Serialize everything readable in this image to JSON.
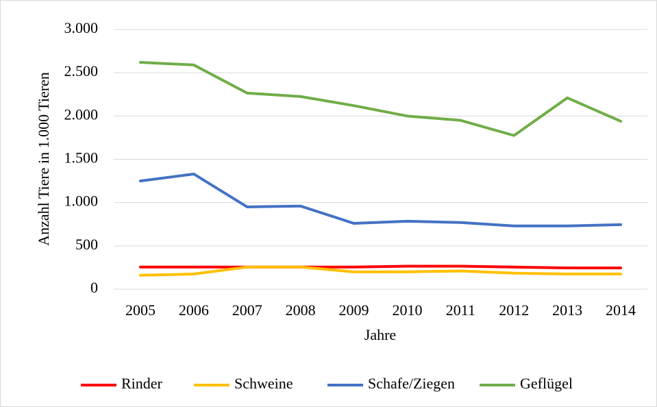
{
  "chart_data": {
    "type": "line",
    "y_label": "Anzahl Tiere in 1.000 Tieren",
    "x_label": "Jahre",
    "categories": [
      "2005",
      "2006",
      "2007",
      "2008",
      "2009",
      "2010",
      "2011",
      "2012",
      "2013",
      "2014"
    ],
    "series": [
      {
        "name": "Rinder",
        "color": "#ff0000",
        "values": [
          255,
          255,
          255,
          255,
          255,
          265,
          265,
          255,
          245,
          245
        ]
      },
      {
        "name": "Schweine",
        "color": "#ffc000",
        "values": [
          160,
          175,
          255,
          255,
          200,
          200,
          210,
          185,
          175,
          175
        ]
      },
      {
        "name": "Schafe/Ziegen",
        "color": "#4472c4",
        "values": [
          1250,
          1330,
          950,
          960,
          760,
          785,
          770,
          730,
          730,
          745
        ]
      },
      {
        "name": "Geflügel",
        "color": "#70ad47",
        "values": [
          2620,
          2590,
          2265,
          2225,
          2120,
          2000,
          1950,
          1775,
          2210,
          1940
        ]
      }
    ],
    "ylim": [
      0,
      3000
    ],
    "yticks": [
      0,
      500,
      {
        "value": 1000,
        "label": "1.000"
      },
      {
        "value": 1500,
        "label": "1.500"
      },
      {
        "value": 2000,
        "label": "2.000"
      },
      {
        "value": 2500,
        "label": "2.500"
      },
      {
        "value": 3000,
        "label": "3.000"
      }
    ],
    "grid": true,
    "legend": "bottom"
  }
}
